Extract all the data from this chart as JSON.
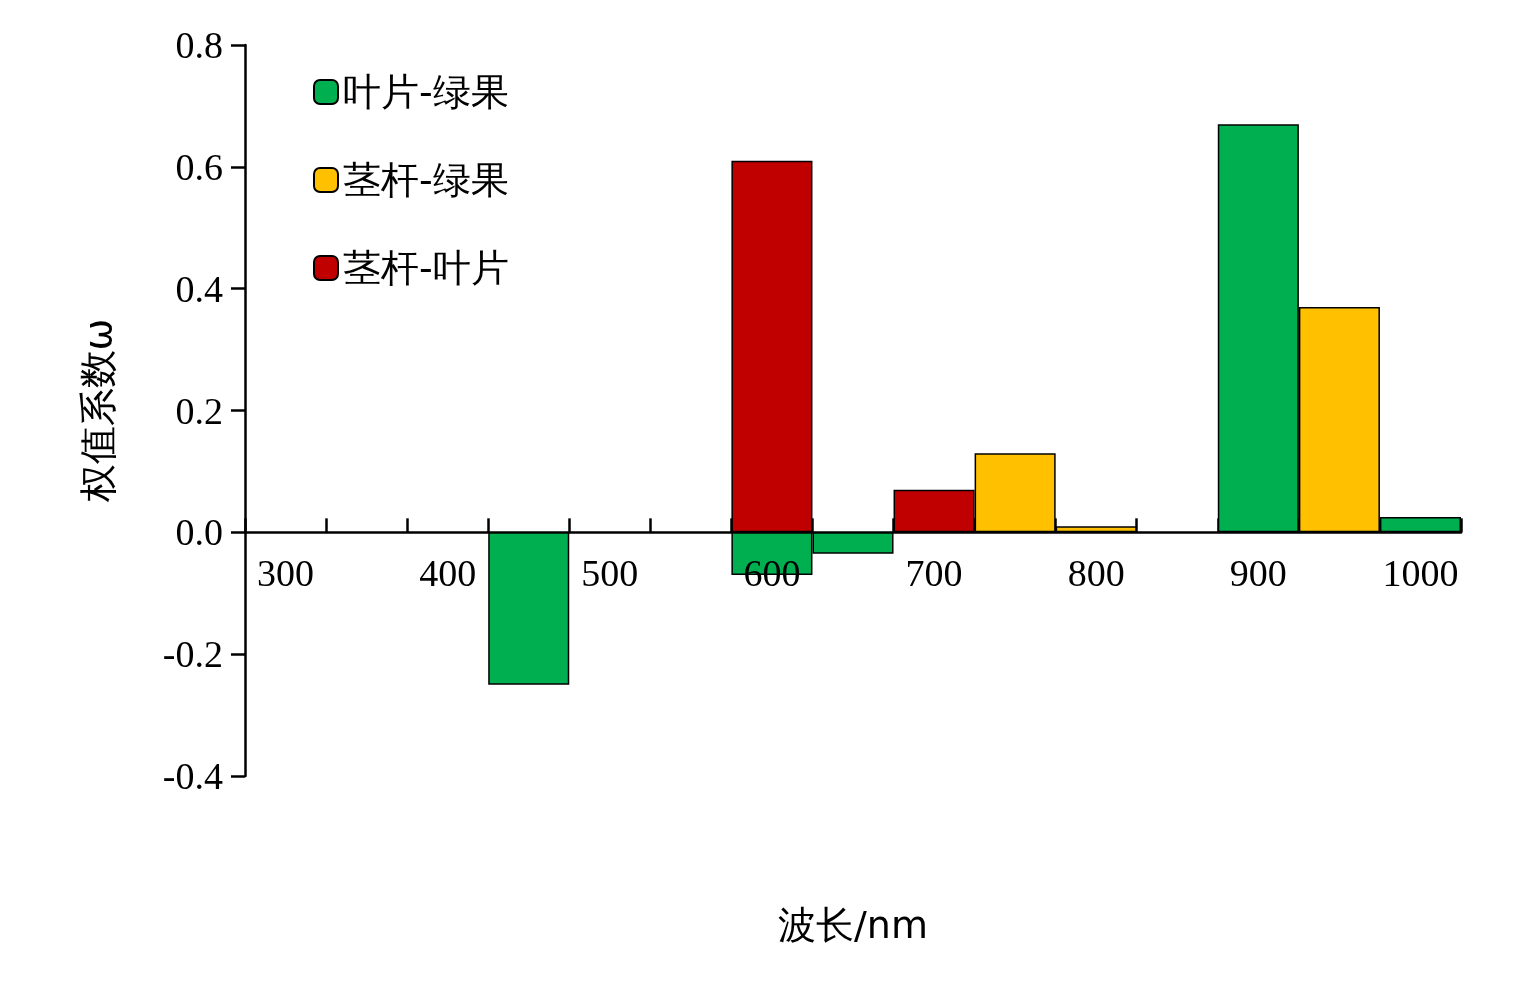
{
  "chart_data": {
    "type": "bar",
    "xlabel": "波长/nm",
    "ylabel": "权值系数ω",
    "categories": [
      "300",
      null,
      "400",
      null,
      "500",
      null,
      "600",
      null,
      "700",
      null,
      "800",
      null,
      "900",
      null,
      "1000"
    ],
    "series": [
      {
        "name": "叶片-绿果",
        "color": "#00b050",
        "values": [
          null,
          null,
          null,
          -0.25,
          null,
          null,
          -0.07,
          -0.035,
          null,
          null,
          null,
          null,
          0.67,
          null,
          0.025
        ]
      },
      {
        "name": "茎杆-绿果",
        "color": "#ffc000",
        "values": [
          null,
          null,
          null,
          null,
          null,
          null,
          null,
          null,
          null,
          0.13,
          0.01,
          null,
          null,
          0.37,
          null
        ]
      },
      {
        "name": "茎杆-叶片",
        "color": "#c00000",
        "values": [
          null,
          null,
          null,
          null,
          null,
          null,
          0.61,
          null,
          0.07,
          null,
          null,
          null,
          null,
          null,
          null
        ]
      }
    ],
    "ylim": [
      -0.4,
      0.8
    ],
    "yticks": [
      -0.4,
      -0.2,
      {
        "value": 0,
        "label": "0.0"
      },
      0.2,
      0.4,
      0.6,
      0.8
    ],
    "grid": false,
    "legend": "top left"
  }
}
